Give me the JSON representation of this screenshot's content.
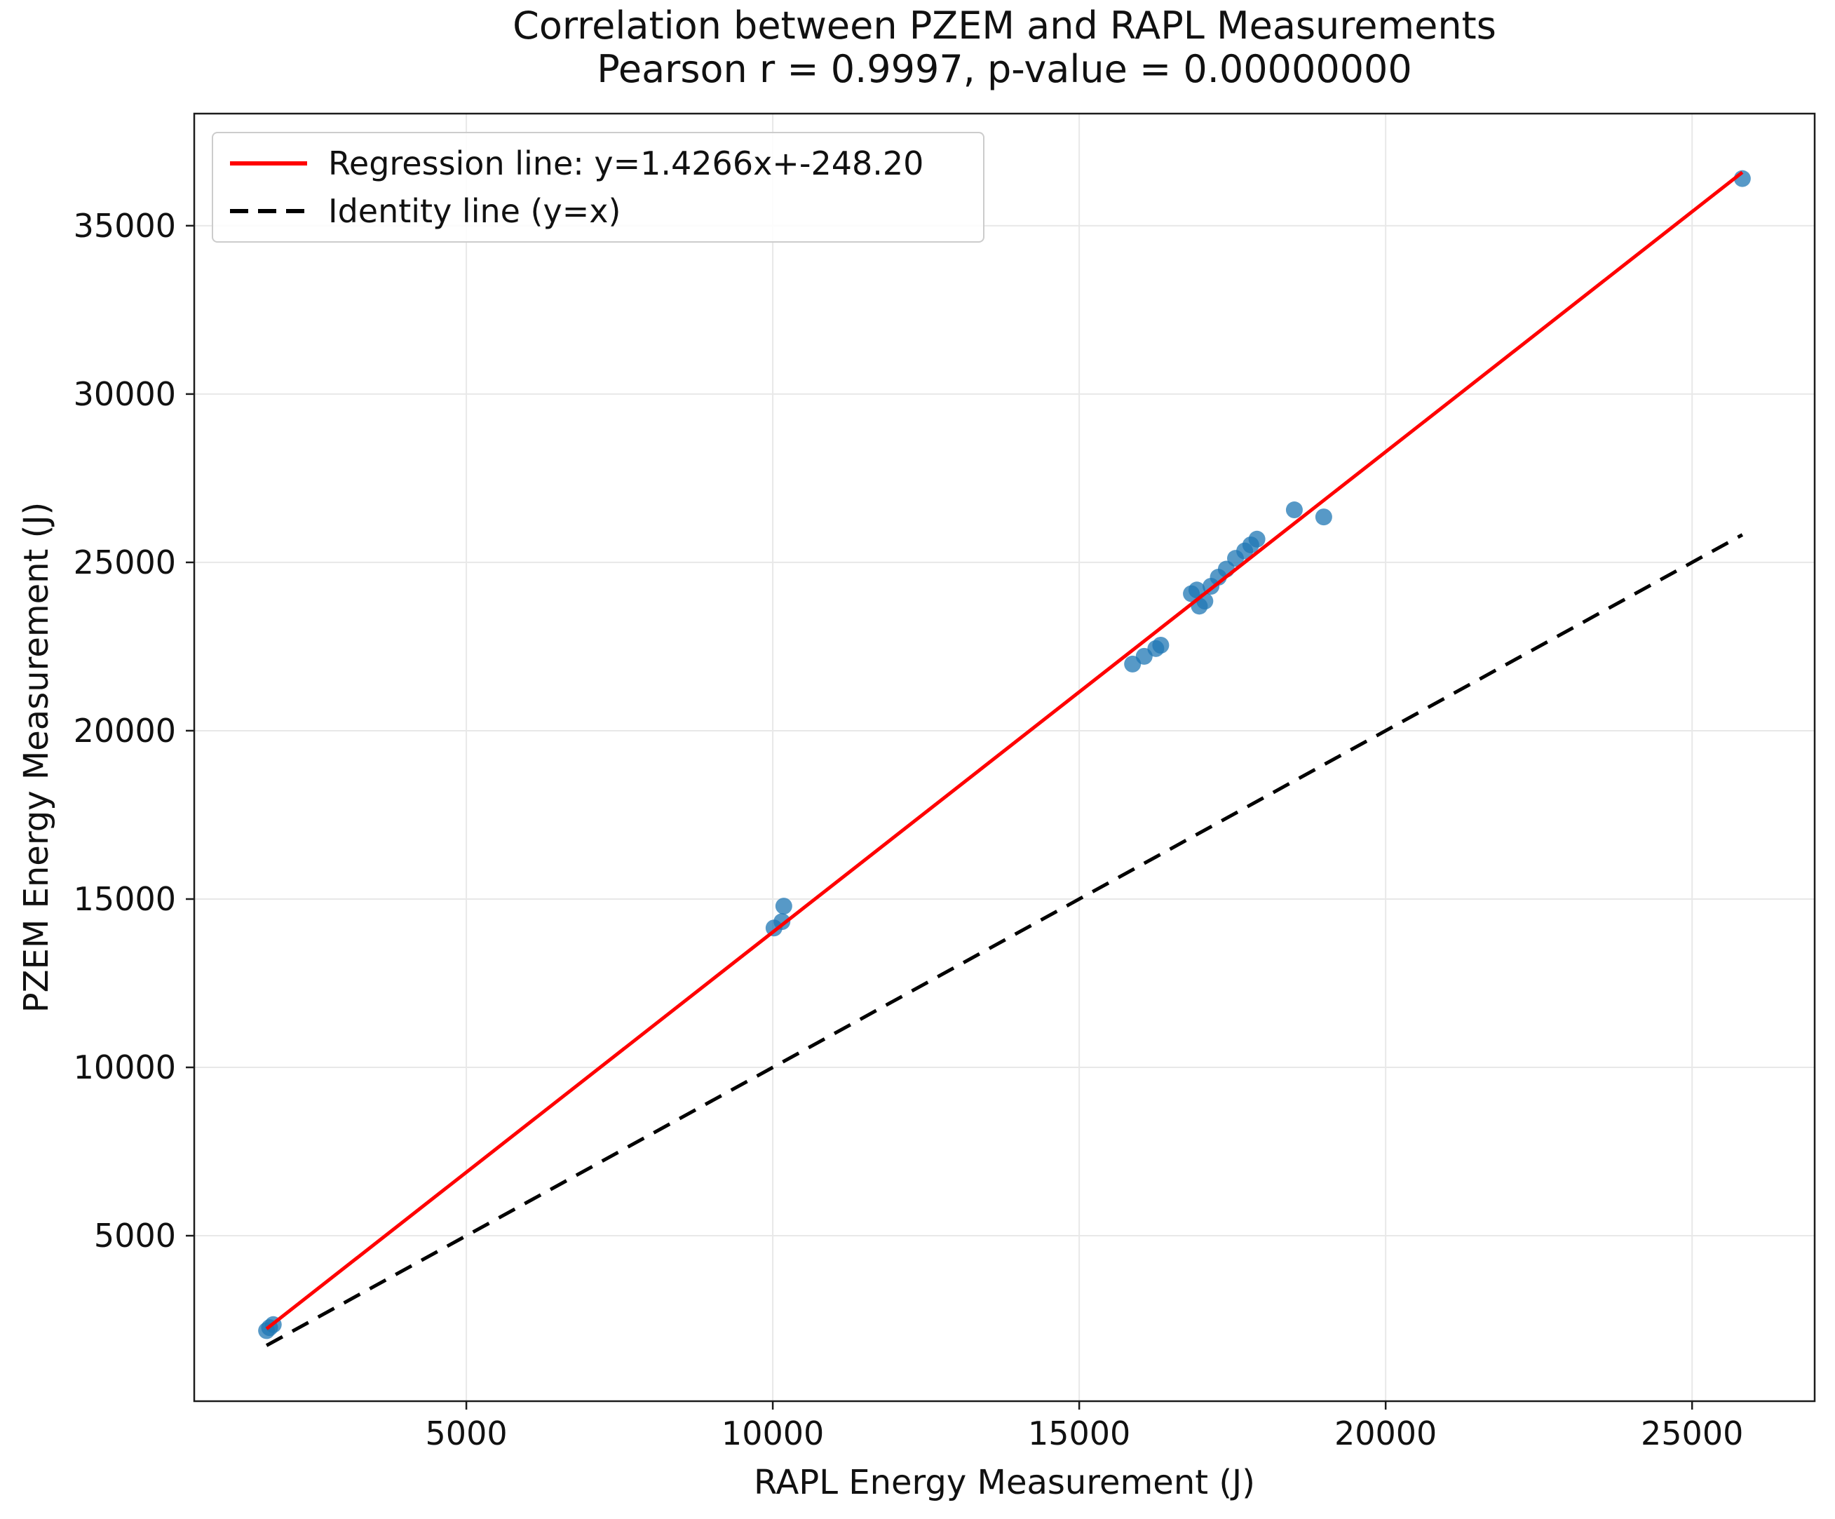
{
  "chart_data": {
    "type": "scatter",
    "title": "Correlation between PZEM and RAPL Measurements",
    "subtitle": "Pearson r = 0.9997, p-value = 0.00000000",
    "pearson_r": 0.9997,
    "p_value_text": "0.00000000",
    "xlabel": "RAPL Energy Measurement (J)",
    "ylabel": "PZEM Energy Measurement (J)",
    "xlim": [
      560,
      27000
    ],
    "ylim": [
      85,
      38330
    ],
    "x_ticks": [
      5000,
      10000,
      15000,
      20000,
      25000
    ],
    "y_ticks": [
      5000,
      10000,
      15000,
      20000,
      25000,
      30000,
      35000
    ],
    "grid": true,
    "grid_color": "#e8e8e8",
    "legend_position": "upper-left",
    "point_color": "#1f77b4",
    "point_opacity": 0.75,
    "point_radius": 12,
    "points": [
      [
        1740,
        2180
      ],
      [
        1790,
        2270
      ],
      [
        1850,
        2360
      ],
      [
        10020,
        14140
      ],
      [
        10150,
        14330
      ],
      [
        10180,
        14790
      ],
      [
        15870,
        21980
      ],
      [
        16060,
        22210
      ],
      [
        16250,
        22440
      ],
      [
        16330,
        22540
      ],
      [
        16830,
        24070
      ],
      [
        16920,
        24180
      ],
      [
        16960,
        23700
      ],
      [
        17050,
        23850
      ],
      [
        17150,
        24290
      ],
      [
        17270,
        24560
      ],
      [
        17400,
        24800
      ],
      [
        17550,
        25120
      ],
      [
        17700,
        25340
      ],
      [
        17800,
        25520
      ],
      [
        17900,
        25690
      ],
      [
        18510,
        26560
      ],
      [
        18990,
        26350
      ],
      [
        25820,
        36400
      ]
    ],
    "regression": {
      "label": "Regression line: y=1.4266x+-248.20",
      "slope": 1.4266,
      "intercept": -248.2,
      "color": "#ff0000"
    },
    "identity": {
      "label": "Identity line (y=x)",
      "color": "#000000",
      "dashed": true
    }
  }
}
